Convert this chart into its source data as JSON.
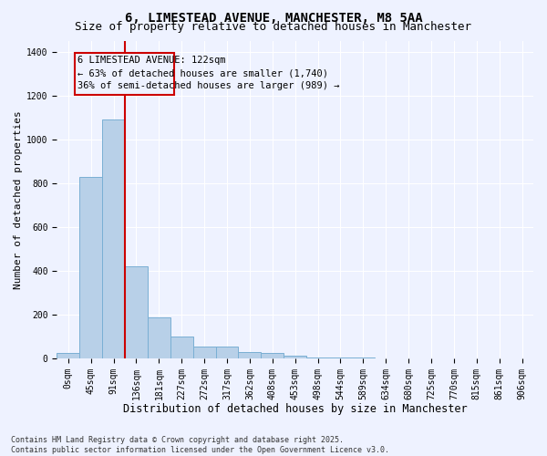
{
  "title_line1": "6, LIMESTEAD AVENUE, MANCHESTER, M8 5AA",
  "title_line2": "Size of property relative to detached houses in Manchester",
  "xlabel": "Distribution of detached houses by size in Manchester",
  "ylabel": "Number of detached properties",
  "bar_labels": [
    "0sqm",
    "45sqm",
    "91sqm",
    "136sqm",
    "181sqm",
    "227sqm",
    "272sqm",
    "317sqm",
    "362sqm",
    "408sqm",
    "453sqm",
    "498sqm",
    "544sqm",
    "589sqm",
    "634sqm",
    "680sqm",
    "725sqm",
    "770sqm",
    "815sqm",
    "861sqm",
    "906sqm"
  ],
  "bar_values": [
    25,
    830,
    1090,
    420,
    185,
    100,
    55,
    55,
    30,
    25,
    10,
    5,
    3,
    2,
    1,
    1,
    1,
    0,
    0,
    0,
    0
  ],
  "bar_color": "#b8d0e8",
  "bar_edgecolor": "#7aafd4",
  "vline_color": "#cc0000",
  "annotation_line1": "6 LIMESTEAD AVENUE: 122sqm",
  "annotation_line2": "← 63% of detached houses are smaller (1,740)",
  "annotation_line3": "36% of semi-detached houses are larger (989) →",
  "annotation_box_color": "#cc0000",
  "ylim": [
    0,
    1450
  ],
  "yticks": [
    0,
    200,
    400,
    600,
    800,
    1000,
    1200,
    1400
  ],
  "background_color": "#eef2ff",
  "grid_color": "#ffffff",
  "footer_text": "Contains HM Land Registry data © Crown copyright and database right 2025.\nContains public sector information licensed under the Open Government Licence v3.0.",
  "title_fontsize": 10,
  "subtitle_fontsize": 9,
  "xlabel_fontsize": 8.5,
  "ylabel_fontsize": 8,
  "tick_fontsize": 7,
  "annotation_fontsize": 7.5,
  "footer_fontsize": 6
}
